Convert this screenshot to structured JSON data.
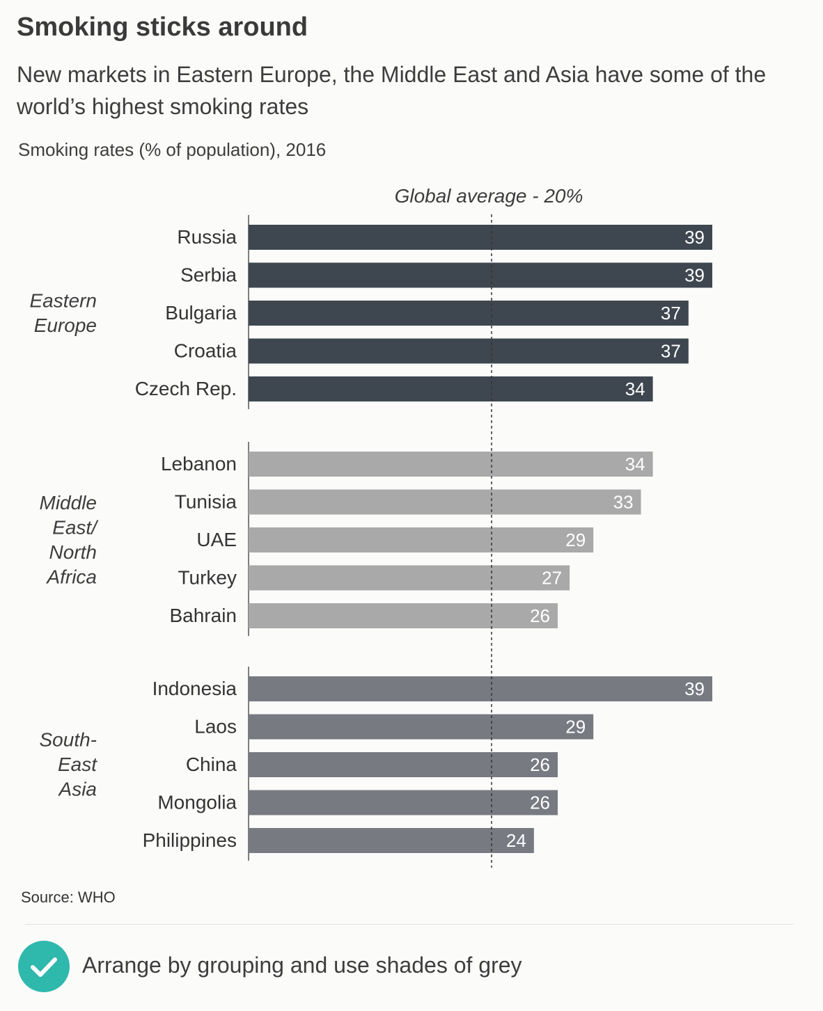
{
  "header": {
    "title": "Smoking sticks around",
    "subtitle": "New markets in Eastern Europe, the Middle East and Asia have some of the world’s highest smoking rates",
    "units": "Smoking rates (% of population), 2016"
  },
  "chart_data": {
    "type": "bar",
    "orientation": "horizontal",
    "xlim": [
      0,
      39
    ],
    "reference_line": {
      "label": "Global average - 20%",
      "value": 20
    },
    "groups": [
      {
        "name_lines": [
          "Eastern",
          "Europe"
        ],
        "color": "#3e4750",
        "categories": [
          "Russia",
          "Serbia",
          "Bulgaria",
          "Croatia",
          "Czech Rep."
        ],
        "values": [
          39,
          39,
          37,
          37,
          34
        ]
      },
      {
        "name_lines": [
          "Middle",
          "East/",
          "North",
          "Africa"
        ],
        "color": "#a9a9a9",
        "categories": [
          "Lebanon",
          "Tunisia",
          "UAE",
          "Turkey",
          "Bahrain"
        ],
        "values": [
          34,
          33,
          29,
          27,
          26
        ]
      },
      {
        "name_lines": [
          "South-",
          "East",
          "Asia"
        ],
        "color": "#787a82",
        "categories": [
          "Indonesia",
          "Laos",
          "China",
          "Mongolia",
          "Philippines"
        ],
        "values": [
          39,
          29,
          26,
          26,
          24
        ]
      }
    ],
    "grid": false,
    "legend": "none"
  },
  "footer": {
    "source": "Source: WHO",
    "note": "Arrange by grouping and use shades of grey",
    "check_color": "#2fb8ac"
  }
}
